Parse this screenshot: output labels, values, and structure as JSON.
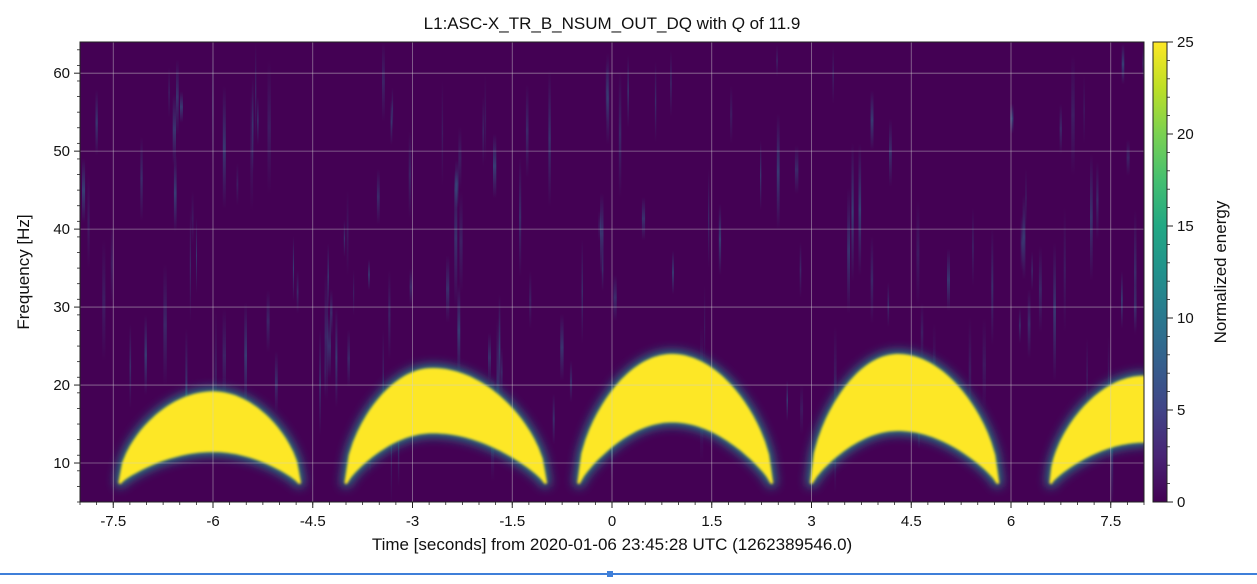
{
  "chart_data": {
    "type": "heatmap",
    "title_prefix": "L1:ASC-X_TR_B_NSUM_OUT_DQ with ",
    "title_q": "Q",
    "title_suffix": " of 11.9",
    "xlabel": "Time [seconds] from 2020-01-06 23:45:28 UTC (1262389546.0)",
    "ylabel": "Frequency [Hz]",
    "xlim": [
      -8.0,
      8.0
    ],
    "ylim": [
      5,
      64
    ],
    "x_ticks": [
      -7.5,
      -6,
      -4.5,
      -3,
      -1.5,
      0,
      1.5,
      3,
      4.5,
      6,
      7.5
    ],
    "x_tick_labels": [
      "-7.5",
      "-6",
      "-4.5",
      "-3",
      "-1.5",
      "0",
      "1.5",
      "3",
      "4.5",
      "6",
      "7.5"
    ],
    "y_ticks": [
      10,
      20,
      30,
      40,
      50,
      60
    ],
    "y_tick_labels": [
      "10",
      "20",
      "30",
      "40",
      "50",
      "60"
    ],
    "grid": true,
    "colorbar": {
      "label": "Normalized energy",
      "range": [
        0,
        25
      ],
      "ticks": [
        0,
        5,
        10,
        15,
        20,
        25
      ],
      "tick_labels": [
        "0",
        "5",
        "10",
        "15",
        "20",
        "25"
      ],
      "colormap": "viridis"
    },
    "arches": [
      {
        "t_start": -7.4,
        "t_end": -4.7,
        "t_peak": -6.0,
        "f_low": 7.5,
        "f_peak": 19.0,
        "inner_f_peak": 11.6
      },
      {
        "t_start": -4.0,
        "t_end": -1.0,
        "t_peak": -2.7,
        "f_low": 7.5,
        "f_peak": 22.0,
        "inner_f_peak": 14.0
      },
      {
        "t_start": -0.5,
        "t_end": 2.4,
        "t_peak": 0.9,
        "f_low": 7.5,
        "f_peak": 23.8,
        "inner_f_peak": 15.4
      },
      {
        "t_start": 3.0,
        "t_end": 5.8,
        "t_peak": 4.3,
        "f_low": 7.5,
        "f_peak": 23.8,
        "inner_f_peak": 14.3
      },
      {
        "t_start": 6.6,
        "t_end": 8.0,
        "t_peak": 8.0,
        "f_low": 7.5,
        "f_peak": 21.0,
        "inner_f_peak": 12.8
      }
    ]
  },
  "colors": {
    "background": "#440154",
    "energy_max": "#fde725",
    "grid": "#cfcfcf",
    "bottom_rule": "#3f7fd9"
  }
}
